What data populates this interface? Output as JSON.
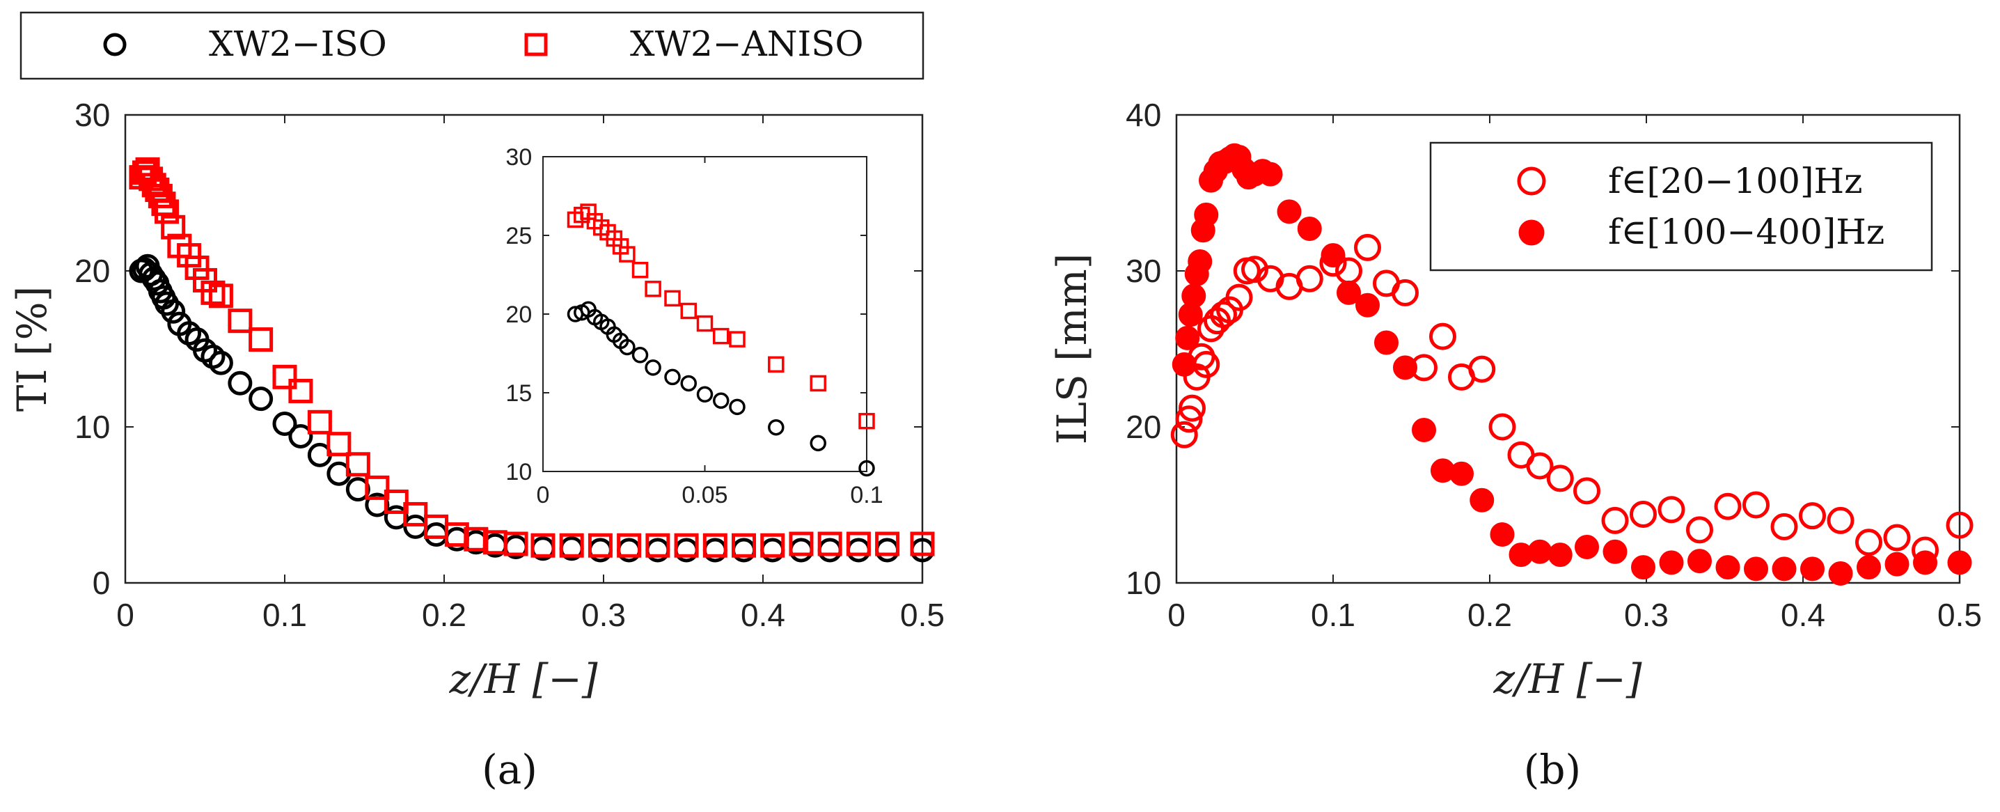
{
  "chart_data": [
    {
      "panel": "(a)",
      "type": "scatter",
      "title": "",
      "xlabel": "z/H [−]",
      "ylabel": "TI  [%]",
      "xlim": [
        0,
        0.5
      ],
      "ylim": [
        0,
        30
      ],
      "xticks": [
        "0",
        "0.1",
        "0.2",
        "0.3",
        "0.4",
        "0.5"
      ],
      "yticks": [
        "0",
        "10",
        "20",
        "30"
      ],
      "legend_position": "top, outside, horizontal",
      "series": [
        {
          "name": "XW2−ISO",
          "marker": "circle-open",
          "color": "#000000",
          "x": [
            0.01,
            0.012,
            0.014,
            0.016,
            0.018,
            0.02,
            0.022,
            0.024,
            0.026,
            0.03,
            0.034,
            0.04,
            0.045,
            0.05,
            0.055,
            0.06,
            0.072,
            0.085,
            0.1,
            0.11,
            0.122,
            0.134,
            0.146,
            0.158,
            0.17,
            0.182,
            0.195,
            0.208,
            0.22,
            0.232,
            0.245,
            0.262,
            0.28,
            0.298,
            0.316,
            0.334,
            0.352,
            0.37,
            0.388,
            0.406,
            0.424,
            0.442,
            0.46,
            0.478,
            0.5
          ],
          "y": [
            20.0,
            20.1,
            20.3,
            19.8,
            19.5,
            19.2,
            18.7,
            18.3,
            17.9,
            17.4,
            16.6,
            16.0,
            15.6,
            14.9,
            14.5,
            14.1,
            12.8,
            11.8,
            10.2,
            9.4,
            8.2,
            7.0,
            6.0,
            5.0,
            4.2,
            3.6,
            3.1,
            2.8,
            2.6,
            2.4,
            2.3,
            2.2,
            2.2,
            2.1,
            2.1,
            2.1,
            2.1,
            2.1,
            2.1,
            2.1,
            2.1,
            2.1,
            2.1,
            2.1,
            2.1
          ]
        },
        {
          "name": "XW2−ANISO",
          "marker": "square-open",
          "color": "#ff0000",
          "x": [
            0.01,
            0.012,
            0.014,
            0.016,
            0.018,
            0.02,
            0.022,
            0.024,
            0.026,
            0.03,
            0.034,
            0.04,
            0.045,
            0.05,
            0.055,
            0.06,
            0.072,
            0.085,
            0.1,
            0.11,
            0.122,
            0.134,
            0.146,
            0.158,
            0.17,
            0.182,
            0.195,
            0.208,
            0.22,
            0.232,
            0.245,
            0.262,
            0.28,
            0.298,
            0.316,
            0.334,
            0.352,
            0.37,
            0.388,
            0.406,
            0.424,
            0.442,
            0.46,
            0.478,
            0.5
          ],
          "y": [
            26.0,
            26.3,
            26.5,
            25.9,
            25.5,
            25.2,
            24.8,
            24.3,
            23.8,
            22.8,
            21.6,
            21.0,
            20.2,
            19.4,
            18.6,
            18.4,
            16.8,
            15.6,
            13.2,
            12.3,
            10.3,
            8.9,
            7.6,
            6.1,
            5.2,
            4.4,
            3.6,
            3.1,
            2.8,
            2.6,
            2.5,
            2.4,
            2.4,
            2.4,
            2.4,
            2.4,
            2.4,
            2.4,
            2.4,
            2.4,
            2.5,
            2.5,
            2.5,
            2.5,
            2.5
          ]
        }
      ],
      "inset": {
        "xlim": [
          0,
          0.1
        ],
        "ylim": [
          10,
          30
        ],
        "xticks": [
          "0",
          "0.05",
          "0.1"
        ],
        "yticks": [
          "10",
          "15",
          "20",
          "25",
          "30"
        ]
      }
    },
    {
      "panel": "(b)",
      "type": "scatter",
      "title": "",
      "xlabel": "z/H [−]",
      "ylabel": "ILS  [mm]",
      "xlim": [
        0,
        0.5
      ],
      "ylim": [
        10,
        40
      ],
      "xticks": [
        "0",
        "0.1",
        "0.2",
        "0.3",
        "0.4",
        "0.5"
      ],
      "yticks": [
        "10",
        "20",
        "30",
        "40"
      ],
      "legend_position": "top-right",
      "series": [
        {
          "name": "f∈[20−100]Hz",
          "marker": "circle-open",
          "color": "#ff0000",
          "x": [
            0.005,
            0.008,
            0.01,
            0.013,
            0.016,
            0.019,
            0.022,
            0.026,
            0.03,
            0.034,
            0.04,
            0.045,
            0.05,
            0.06,
            0.072,
            0.085,
            0.1,
            0.11,
            0.122,
            0.134,
            0.146,
            0.158,
            0.17,
            0.182,
            0.195,
            0.208,
            0.22,
            0.232,
            0.245,
            0.262,
            0.28,
            0.298,
            0.316,
            0.334,
            0.352,
            0.37,
            0.388,
            0.406,
            0.424,
            0.442,
            0.46,
            0.478,
            0.5
          ],
          "y": [
            19.5,
            20.5,
            21.2,
            23.2,
            24.5,
            24.0,
            26.3,
            26.8,
            27.2,
            27.5,
            28.3,
            30.0,
            30.1,
            29.5,
            29.0,
            29.5,
            30.5,
            30.0,
            31.5,
            29.2,
            28.6,
            23.8,
            25.8,
            23.2,
            23.7,
            20.0,
            18.2,
            17.5,
            16.7,
            15.9,
            14.0,
            14.4,
            14.7,
            13.4,
            14.9,
            15.0,
            13.6,
            14.3,
            14.0,
            12.6,
            12.9,
            12.1,
            13.7
          ]
        },
        {
          "name": "f∈[100−400]Hz",
          "marker": "circle-filled",
          "color": "#ff0000",
          "x": [
            0.005,
            0.007,
            0.009,
            0.011,
            0.013,
            0.015,
            0.017,
            0.019,
            0.022,
            0.025,
            0.028,
            0.031,
            0.034,
            0.037,
            0.04,
            0.043,
            0.046,
            0.05,
            0.055,
            0.06,
            0.072,
            0.085,
            0.1,
            0.11,
            0.122,
            0.134,
            0.146,
            0.158,
            0.17,
            0.182,
            0.195,
            0.208,
            0.22,
            0.232,
            0.245,
            0.262,
            0.28,
            0.298,
            0.316,
            0.334,
            0.352,
            0.37,
            0.388,
            0.406,
            0.424,
            0.442,
            0.46,
            0.478,
            0.5
          ],
          "y": [
            24.0,
            25.7,
            27.2,
            28.4,
            29.8,
            30.6,
            32.6,
            33.6,
            35.8,
            36.4,
            36.9,
            37.0,
            37.2,
            37.4,
            37.3,
            36.5,
            36.0,
            36.2,
            36.4,
            36.2,
            33.8,
            32.7,
            31.0,
            28.6,
            27.8,
            25.4,
            23.8,
            19.8,
            17.2,
            17.0,
            15.3,
            13.1,
            11.8,
            12.0,
            11.8,
            12.3,
            12.0,
            11.0,
            11.3,
            11.4,
            11.0,
            10.9,
            10.9,
            10.9,
            10.6,
            11.0,
            11.2,
            11.3,
            11.3
          ]
        }
      ]
    }
  ]
}
